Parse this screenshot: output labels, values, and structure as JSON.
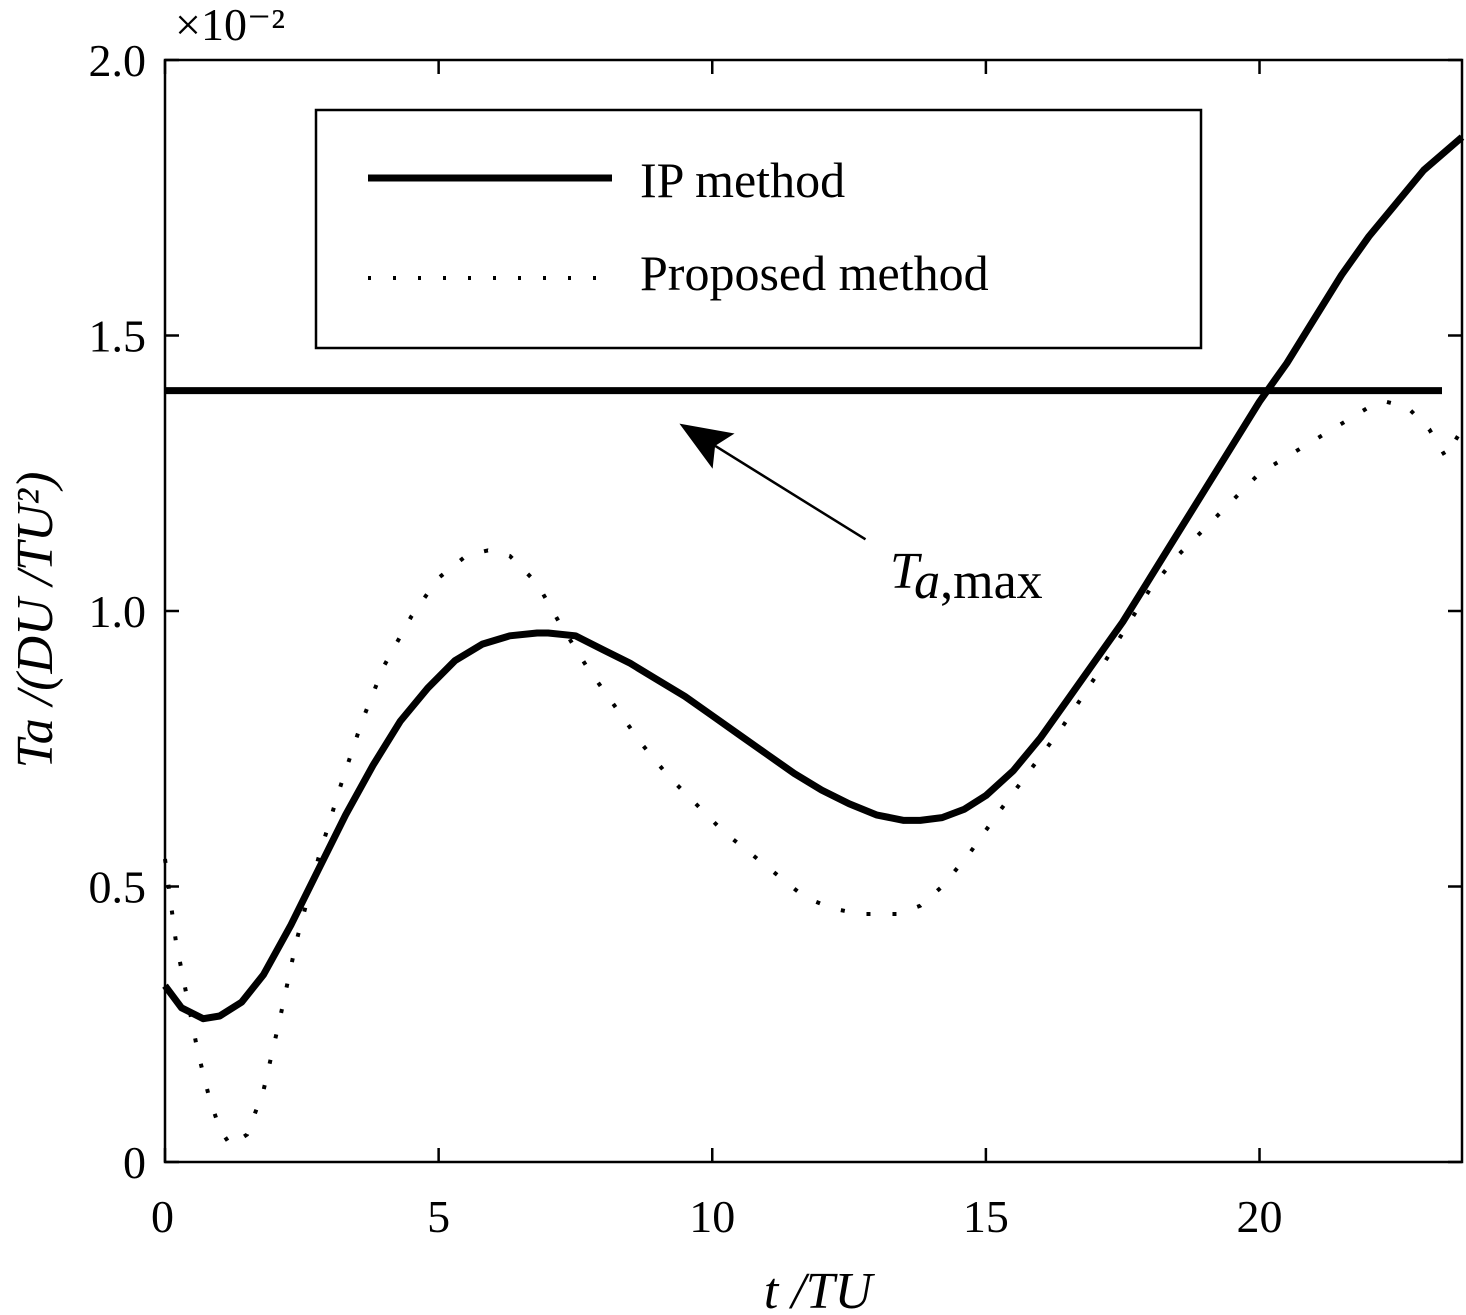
{
  "chart_data": {
    "type": "line",
    "title": "",
    "xlabel": "t /TU",
    "ylabel": "Ta /(DU /TU²)",
    "xlim": [
      0,
      23.7
    ],
    "ylim": [
      0,
      2.0
    ],
    "y_multiplier": "×10⁻²",
    "x_ticks": [
      0,
      5,
      10,
      15,
      20
    ],
    "x_tick_labels": [
      "0",
      "5",
      "10",
      "15",
      "20"
    ],
    "y_ticks": [
      0,
      0.5,
      1.0,
      1.5,
      2.0
    ],
    "y_tick_labels": [
      "0",
      "0.5",
      "1.0",
      "1.5",
      "2.0"
    ],
    "grid": false,
    "legend_position": "top",
    "series": [
      {
        "name": "IP method",
        "style": "solid",
        "color": "#000000",
        "x": [
          0,
          0.3,
          0.7,
          1.0,
          1.4,
          1.8,
          2.3,
          2.8,
          3.3,
          3.8,
          4.3,
          4.8,
          5.3,
          5.8,
          6.3,
          6.8,
          7.0,
          7.5,
          8.0,
          8.5,
          9.0,
          9.5,
          10.0,
          10.5,
          11.0,
          11.5,
          12.0,
          12.5,
          13.0,
          13.5,
          13.8,
          14.2,
          14.6,
          15.0,
          15.5,
          16.0,
          16.5,
          17.0,
          17.5,
          18.0,
          18.5,
          19.0,
          19.5,
          20.0,
          20.5,
          21.0,
          21.5,
          22.0,
          22.5,
          23.0,
          23.7
        ],
        "y": [
          0.32,
          0.28,
          0.26,
          0.265,
          0.29,
          0.34,
          0.43,
          0.53,
          0.63,
          0.72,
          0.8,
          0.86,
          0.91,
          0.94,
          0.955,
          0.96,
          0.96,
          0.955,
          0.93,
          0.905,
          0.875,
          0.845,
          0.81,
          0.775,
          0.74,
          0.705,
          0.675,
          0.65,
          0.63,
          0.62,
          0.62,
          0.625,
          0.64,
          0.665,
          0.71,
          0.77,
          0.84,
          0.91,
          0.98,
          1.06,
          1.14,
          1.22,
          1.3,
          1.38,
          1.45,
          1.53,
          1.61,
          1.68,
          1.74,
          1.8,
          1.86
        ]
      },
      {
        "name": "Proposed method",
        "style": "dotted",
        "color": "#000000",
        "x": [
          0,
          0.2,
          0.4,
          0.6,
          0.8,
          1.0,
          1.2,
          1.5,
          1.8,
          2.1,
          2.4,
          2.8,
          3.2,
          3.6,
          4.0,
          4.5,
          5.0,
          5.5,
          5.9,
          6.3,
          6.8,
          7.2,
          7.7,
          8.2,
          8.7,
          9.2,
          9.7,
          10.2,
          10.7,
          11.2,
          11.7,
          12.2,
          12.7,
          13.1,
          13.4,
          13.8,
          14.2,
          14.7,
          15.2,
          15.8,
          16.4,
          17.0,
          17.5,
          18.0,
          18.5,
          19.0,
          19.5,
          20.0,
          20.5,
          21.0,
          21.5,
          22.0,
          22.3,
          22.7,
          23.1,
          23.4,
          23.7
        ],
        "y": [
          0.55,
          0.4,
          0.3,
          0.2,
          0.12,
          0.06,
          0.03,
          0.05,
          0.13,
          0.26,
          0.4,
          0.55,
          0.68,
          0.8,
          0.9,
          0.99,
          1.06,
          1.1,
          1.11,
          1.1,
          1.05,
          0.98,
          0.9,
          0.83,
          0.76,
          0.7,
          0.65,
          0.6,
          0.56,
          0.52,
          0.48,
          0.46,
          0.45,
          0.45,
          0.45,
          0.465,
          0.5,
          0.56,
          0.63,
          0.71,
          0.79,
          0.88,
          0.96,
          1.04,
          1.1,
          1.15,
          1.2,
          1.25,
          1.28,
          1.31,
          1.34,
          1.37,
          1.38,
          1.37,
          1.33,
          1.28,
          1.33
        ]
      }
    ],
    "reference_line": {
      "y": 1.4
    },
    "annotation": {
      "label_main": "T",
      "label_sub": "a",
      "label_rest": ",max",
      "arrow_tail": [
        12.8,
        1.13
      ],
      "arrow_head": [
        9.4,
        1.34
      ]
    }
  }
}
